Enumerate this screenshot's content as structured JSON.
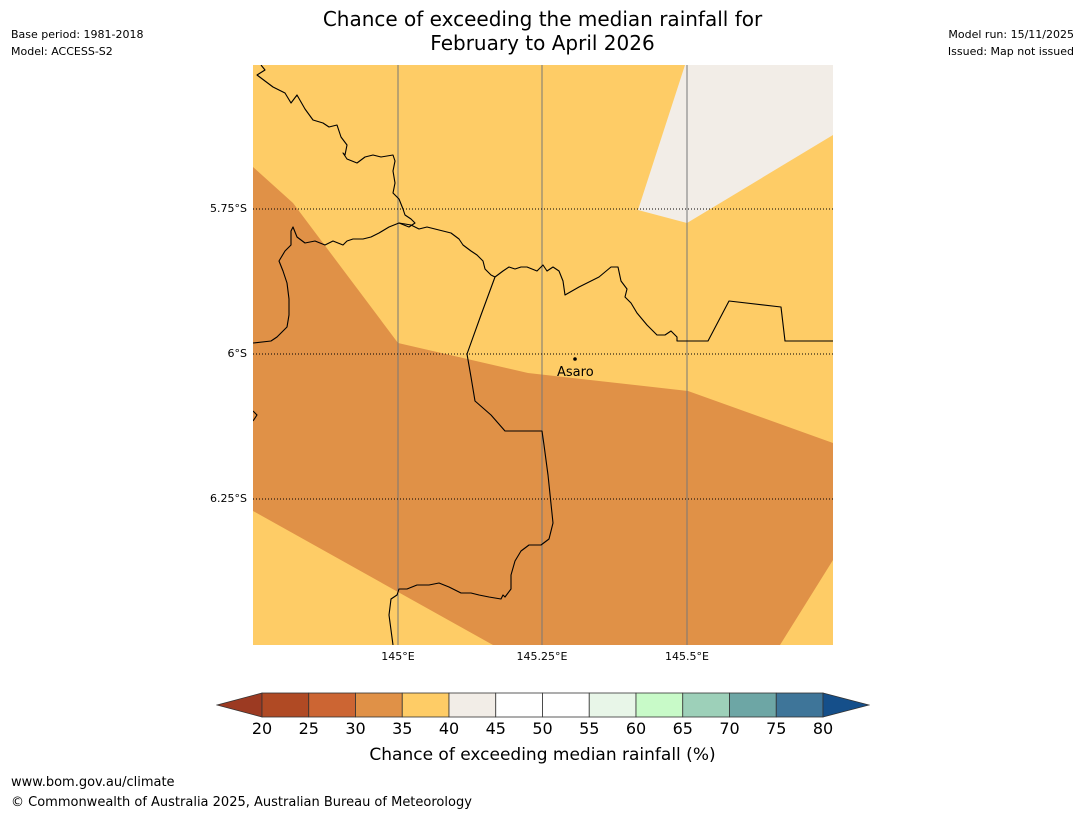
{
  "title": {
    "line1": "Chance of exceeding the median rainfall for",
    "line2": "February to April 2026"
  },
  "meta_left": {
    "base_period": "Base period: 1981-2018",
    "model": "Model: ACCESS-S2"
  },
  "meta_right": {
    "model_run": "Model run: 15/11/2025",
    "issued": "Issued: Map not issued"
  },
  "map": {
    "lat_labels": [
      "5.75°S",
      "6°S",
      "6.25°S"
    ],
    "lon_labels": [
      "145°E",
      "145.25°E",
      "145.5°E"
    ],
    "place": {
      "name": "Asaro"
    }
  },
  "colorbar": {
    "ticks": [
      "20",
      "25",
      "30",
      "35",
      "40",
      "45",
      "50",
      "55",
      "60",
      "65",
      "70",
      "75",
      "80"
    ],
    "colors": {
      "below20": "#9c3a22",
      "c20_25": "#b04a24",
      "c25_30": "#cc6533",
      "c30_35": "#e09147",
      "c35_40": "#fecc66",
      "c40_45": "#f2ede7",
      "c45_50": "#ffffff",
      "c50_55": "#ffffff",
      "c55_60": "#e8f6e8",
      "c60_65": "#c8fac8",
      "c65_70": "#9dd0b9",
      "c70_75": "#6da6a5",
      "c75_80": "#3e7599",
      "above80": "#154f8a"
    },
    "label": "Chance of exceeding median rainfall (%)"
  },
  "footer": {
    "url": "www.bom.gov.au/climate",
    "copyright": "© Commonwealth of Australia 2025, Australian Bureau of Meteorology"
  }
}
